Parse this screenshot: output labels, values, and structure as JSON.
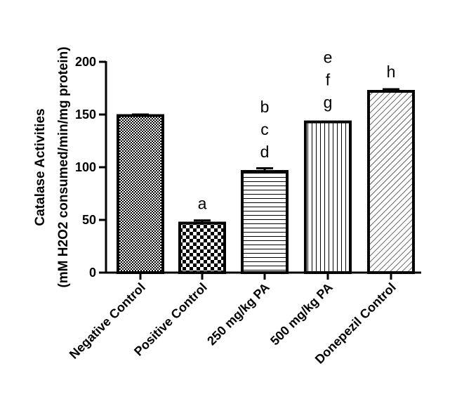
{
  "chart_data": {
    "type": "bar",
    "ylabel_line1": "Catalase Activities",
    "ylabel_line2": "(mM H2O2 consumed/min/mg protein)",
    "ylim": [
      0,
      200
    ],
    "yticks": [
      0,
      50,
      100,
      150,
      200
    ],
    "categories": [
      "Negative Control",
      "Positive Control",
      "250 mg/kg PA",
      "500 mg/kg PA",
      "Donepezil Control"
    ],
    "values": [
      149,
      47,
      96,
      143,
      172
    ],
    "errors": [
      1,
      2.5,
      3,
      0,
      2
    ],
    "patterns": [
      "crosshatch-fine",
      "checkerboard",
      "horizontal-lines",
      "vertical-lines",
      "diagonal-lines"
    ],
    "significance": [
      [],
      [
        "a"
      ],
      [
        "b",
        "c",
        "d"
      ],
      [
        "e",
        "f",
        "g"
      ],
      [
        "h"
      ]
    ],
    "grid": false,
    "legend": "none"
  }
}
